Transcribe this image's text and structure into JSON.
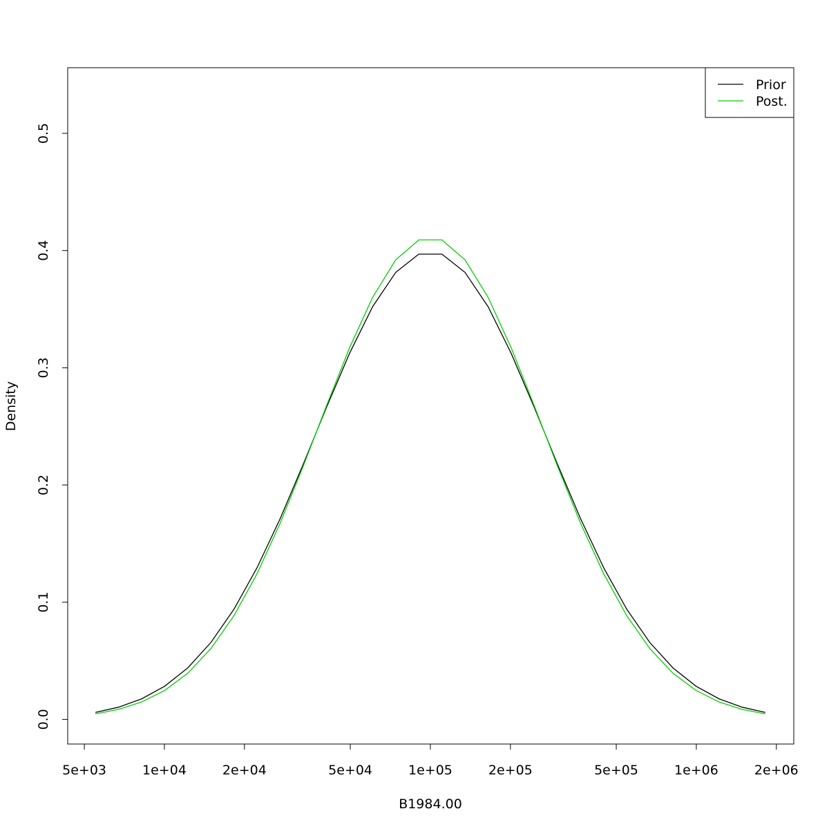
{
  "chart_data": {
    "type": "line",
    "x_label": "B1984.00",
    "y_label": "Density",
    "x": [
      5502,
      6721,
      8208,
      10026,
      12246,
      14957,
      18268,
      22313,
      27253,
      33287,
      40657,
      49659,
      60653,
      74082,
      90484,
      110517,
      134986,
      164872,
      201375,
      245960,
      300417,
      366930,
      448169,
      547395,
      668589,
      816617,
      997418,
      1218249,
      1487973,
      1817414
    ],
    "series": [
      {
        "name": "Prior",
        "color": "#000000",
        "values": [
          0.00595,
          0.01042,
          0.01753,
          0.02833,
          0.04398,
          0.06562,
          0.09405,
          0.12952,
          0.17137,
          0.21785,
          0.26609,
          0.31225,
          0.35207,
          0.38139,
          0.39695,
          0.39695,
          0.38139,
          0.35207,
          0.31225,
          0.26609,
          0.21785,
          0.17137,
          0.12952,
          0.09405,
          0.06562,
          0.04398,
          0.02833,
          0.01753,
          0.01042,
          0.00595
        ]
      },
      {
        "name": "Post.",
        "color": "#00cd00",
        "values": [
          0.00471,
          0.00854,
          0.01485,
          0.02473,
          0.03947,
          0.06041,
          0.08852,
          0.12438,
          0.16755,
          0.21621,
          0.26743,
          0.31699,
          0.3601,
          0.39208,
          0.4091,
          0.4091,
          0.39208,
          0.3601,
          0.31699,
          0.26743,
          0.21621,
          0.16755,
          0.12438,
          0.08852,
          0.06041,
          0.03947,
          0.02473,
          0.01485,
          0.00854,
          0.00471
        ]
      }
    ],
    "log_x": true,
    "xlim": [
      4329,
      2325000
    ],
    "ylim": [
      -0.021,
      0.556
    ],
    "xticks": [
      {
        "value": 5000,
        "label": "5e+03"
      },
      {
        "value": 10000,
        "label": "1e+04"
      },
      {
        "value": 20000,
        "label": "2e+04"
      },
      {
        "value": 50000,
        "label": "5e+04"
      },
      {
        "value": 100000,
        "label": "1e+05"
      },
      {
        "value": 200000,
        "label": "2e+05"
      },
      {
        "value": 500000,
        "label": "5e+05"
      },
      {
        "value": 1000000,
        "label": "1e+06"
      },
      {
        "value": 2000000,
        "label": "2e+06"
      }
    ],
    "yticks": [
      {
        "value": 0,
        "label": "0.0"
      },
      0.1,
      0.2,
      0.3,
      0.4,
      0.5
    ],
    "legend": "topright"
  }
}
